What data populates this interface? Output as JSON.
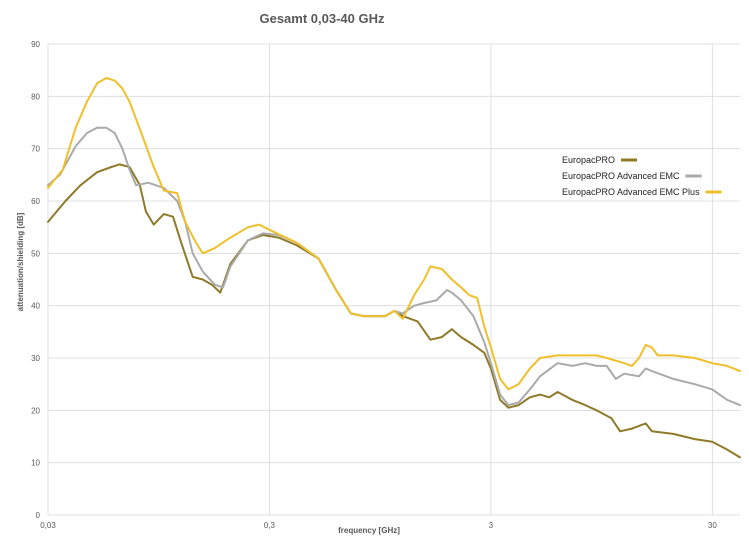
{
  "chart_data": {
    "type": "line",
    "title": "Gesamt 0,03-40 GHz",
    "xlabel": "frequency [GHz]",
    "ylabel": "attenuation/shielding [dB]",
    "x_scale": "log",
    "xlim": [
      0.03,
      40
    ],
    "ylim": [
      0,
      90
    ],
    "grid": true,
    "legend_position": "right",
    "yticks": [
      {
        "value": 0,
        "label": "0"
      },
      {
        "value": 10,
        "label": "10"
      },
      {
        "value": 20,
        "label": "20"
      },
      {
        "value": 30,
        "label": "30"
      },
      {
        "value": 40,
        "label": "40"
      },
      {
        "value": 50,
        "label": "50"
      },
      {
        "value": 60,
        "label": "60"
      },
      {
        "value": 70,
        "label": "70"
      },
      {
        "value": 80,
        "label": "80"
      },
      {
        "value": 90,
        "label": "90"
      }
    ],
    "xticks": [
      {
        "value": 0.03,
        "label": "0,03"
      },
      {
        "value": 0.3,
        "label": "0,3"
      },
      {
        "value": 3,
        "label": "3"
      },
      {
        "value": 30,
        "label": "30"
      }
    ],
    "series": [
      {
        "name": "EuropacPRO",
        "color": "#8f7a2a",
        "points": [
          [
            0.03,
            56
          ],
          [
            0.036,
            60
          ],
          [
            0.042,
            63
          ],
          [
            0.05,
            65.5
          ],
          [
            0.058,
            66.5
          ],
          [
            0.063,
            67
          ],
          [
            0.07,
            66.5
          ],
          [
            0.078,
            63
          ],
          [
            0.083,
            58
          ],
          [
            0.09,
            55.5
          ],
          [
            0.1,
            57.5
          ],
          [
            0.11,
            57
          ],
          [
            0.12,
            52
          ],
          [
            0.135,
            45.5
          ],
          [
            0.15,
            45
          ],
          [
            0.165,
            44
          ],
          [
            0.18,
            42.5
          ],
          [
            0.2,
            48
          ],
          [
            0.24,
            52.5
          ],
          [
            0.28,
            53.5
          ],
          [
            0.33,
            53
          ],
          [
            0.4,
            51.5
          ],
          [
            0.5,
            49
          ],
          [
            0.6,
            43
          ],
          [
            0.7,
            38.5
          ],
          [
            0.8,
            38
          ],
          [
            1.0,
            38
          ],
          [
            1.1,
            39
          ],
          [
            1.2,
            38
          ],
          [
            1.4,
            37
          ],
          [
            1.6,
            33.5
          ],
          [
            1.8,
            34
          ],
          [
            2.0,
            35.5
          ],
          [
            2.2,
            34
          ],
          [
            2.5,
            32.5
          ],
          [
            2.8,
            31
          ],
          [
            3.0,
            28
          ],
          [
            3.3,
            22
          ],
          [
            3.6,
            20.5
          ],
          [
            4.0,
            21
          ],
          [
            4.5,
            22.5
          ],
          [
            5.0,
            23
          ],
          [
            5.5,
            22.5
          ],
          [
            6.0,
            23.5
          ],
          [
            7.0,
            22
          ],
          [
            8.0,
            21
          ],
          [
            9.0,
            20
          ],
          [
            10.5,
            18.5
          ],
          [
            11.5,
            16
          ],
          [
            13,
            16.5
          ],
          [
            15,
            17.5
          ],
          [
            16,
            16
          ],
          [
            20,
            15.5
          ],
          [
            25,
            14.5
          ],
          [
            30,
            14
          ],
          [
            35,
            12.5
          ],
          [
            40,
            11
          ]
        ]
      },
      {
        "name": "EuropacPRO Advanced EMC",
        "color": "#aaaaaa",
        "points": [
          [
            0.03,
            63
          ],
          [
            0.034,
            65
          ],
          [
            0.04,
            70.5
          ],
          [
            0.045,
            73
          ],
          [
            0.05,
            74
          ],
          [
            0.055,
            74
          ],
          [
            0.06,
            73
          ],
          [
            0.065,
            70
          ],
          [
            0.07,
            66
          ],
          [
            0.075,
            63
          ],
          [
            0.085,
            63.5
          ],
          [
            0.1,
            62.5
          ],
          [
            0.115,
            60
          ],
          [
            0.125,
            56
          ],
          [
            0.135,
            50
          ],
          [
            0.15,
            46.5
          ],
          [
            0.17,
            44
          ],
          [
            0.185,
            43.5
          ],
          [
            0.2,
            47.5
          ],
          [
            0.24,
            52.5
          ],
          [
            0.28,
            53.8
          ],
          [
            0.33,
            53.5
          ],
          [
            0.4,
            52
          ],
          [
            0.5,
            49
          ],
          [
            0.6,
            43
          ],
          [
            0.7,
            38.5
          ],
          [
            0.8,
            38
          ],
          [
            1.0,
            38
          ],
          [
            1.1,
            39
          ],
          [
            1.2,
            38.5
          ],
          [
            1.35,
            40
          ],
          [
            1.5,
            40.5
          ],
          [
            1.7,
            41
          ],
          [
            1.9,
            43
          ],
          [
            2.0,
            42.5
          ],
          [
            2.2,
            41
          ],
          [
            2.5,
            38
          ],
          [
            2.8,
            33
          ],
          [
            3.0,
            29
          ],
          [
            3.3,
            23
          ],
          [
            3.6,
            21
          ],
          [
            4.0,
            21.5
          ],
          [
            4.5,
            24
          ],
          [
            5.0,
            26.5
          ],
          [
            6.0,
            29
          ],
          [
            7.0,
            28.5
          ],
          [
            8.0,
            29
          ],
          [
            9.0,
            28.5
          ],
          [
            10,
            28.5
          ],
          [
            11,
            26
          ],
          [
            12,
            27
          ],
          [
            14,
            26.5
          ],
          [
            15,
            28
          ],
          [
            16,
            27.5
          ],
          [
            20,
            26
          ],
          [
            25,
            25
          ],
          [
            30,
            24
          ],
          [
            35,
            22
          ],
          [
            40,
            21
          ]
        ]
      },
      {
        "name": "EuropacPRO Advanced EMC Plus",
        "color": "#f0c02c",
        "points": [
          [
            0.03,
            62.5
          ],
          [
            0.035,
            66
          ],
          [
            0.04,
            74
          ],
          [
            0.045,
            79
          ],
          [
            0.05,
            82.5
          ],
          [
            0.055,
            83.5
          ],
          [
            0.06,
            83
          ],
          [
            0.065,
            81.5
          ],
          [
            0.07,
            79
          ],
          [
            0.08,
            72.5
          ],
          [
            0.09,
            66.5
          ],
          [
            0.1,
            62
          ],
          [
            0.115,
            61.5
          ],
          [
            0.125,
            56
          ],
          [
            0.14,
            52
          ],
          [
            0.15,
            50
          ],
          [
            0.17,
            51
          ],
          [
            0.2,
            53
          ],
          [
            0.24,
            55
          ],
          [
            0.27,
            55.5
          ],
          [
            0.3,
            54.5
          ],
          [
            0.4,
            52
          ],
          [
            0.5,
            49
          ],
          [
            0.6,
            43
          ],
          [
            0.7,
            38.5
          ],
          [
            0.8,
            38
          ],
          [
            1.0,
            38
          ],
          [
            1.1,
            39
          ],
          [
            1.2,
            37.5
          ],
          [
            1.35,
            42
          ],
          [
            1.5,
            45
          ],
          [
            1.6,
            47.5
          ],
          [
            1.8,
            47
          ],
          [
            2.0,
            45
          ],
          [
            2.2,
            43.5
          ],
          [
            2.4,
            42
          ],
          [
            2.6,
            41.5
          ],
          [
            2.8,
            36
          ],
          [
            3.0,
            32
          ],
          [
            3.3,
            26
          ],
          [
            3.6,
            24
          ],
          [
            4.0,
            25
          ],
          [
            4.5,
            28
          ],
          [
            5.0,
            30
          ],
          [
            6.0,
            30.5
          ],
          [
            7.0,
            30.5
          ],
          [
            8.0,
            30.5
          ],
          [
            9.0,
            30.5
          ],
          [
            10,
            30
          ],
          [
            12,
            29
          ],
          [
            13,
            28.5
          ],
          [
            14,
            30
          ],
          [
            15,
            32.5
          ],
          [
            16,
            32
          ],
          [
            17,
            30.5
          ],
          [
            20,
            30.5
          ],
          [
            25,
            30
          ],
          [
            30,
            29
          ],
          [
            35,
            28.5
          ],
          [
            40,
            27.5
          ]
        ]
      }
    ]
  }
}
